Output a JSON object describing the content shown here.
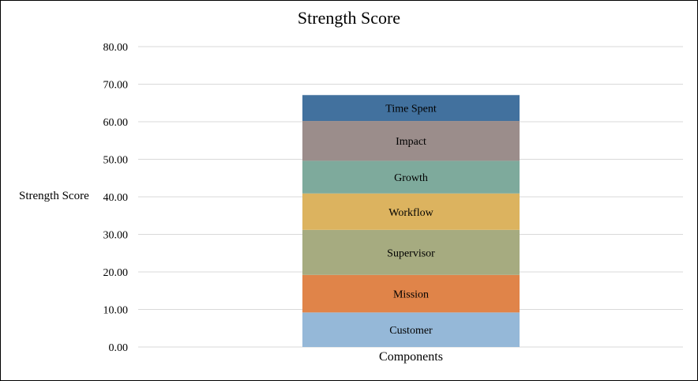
{
  "chart_data": {
    "type": "bar",
    "stacked": true,
    "title": "Strength Score",
    "xlabel": "Components",
    "ylabel": "Strength Score",
    "ylim": [
      0,
      80
    ],
    "yticks": [
      "0.00",
      "10.00",
      "20.00",
      "30.00",
      "40.00",
      "50.00",
      "60.00",
      "70.00",
      "80.00"
    ],
    "grid": true,
    "legend": "none",
    "categories": [
      ""
    ],
    "series": [
      {
        "name": "Customer",
        "values": [
          9.2
        ],
        "color": "#95b8d8"
      },
      {
        "name": "Mission",
        "values": [
          10.0
        ],
        "color": "#e08449"
      },
      {
        "name": "Supervisor",
        "values": [
          12.0
        ],
        "color": "#a6ab80"
      },
      {
        "name": "Workflow",
        "values": [
          9.7
        ],
        "color": "#dcb35f"
      },
      {
        "name": "Growth",
        "values": [
          8.7
        ],
        "color": "#7eaa9c"
      },
      {
        "name": "Impact",
        "values": [
          10.6
        ],
        "color": "#9b8d8b"
      },
      {
        "name": "Time Spent",
        "values": [
          6.9
        ],
        "color": "#42719e"
      }
    ]
  }
}
